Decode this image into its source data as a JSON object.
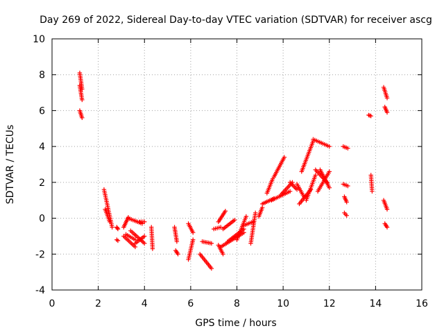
{
  "chart_data": {
    "type": "scatter",
    "title": "Day 269 of 2022, Sidereal Day-to-day VTEC variation (SDTVAR) for receiver ascg",
    "xlabel": "GPS time / hours",
    "ylabel": "SDTVAR / TECUs",
    "xlim": [
      0,
      16
    ],
    "ylim": [
      -4,
      10
    ],
    "xticks": [
      "0",
      "2",
      "4",
      "6",
      "8",
      "10",
      "12",
      "14",
      "16"
    ],
    "yticks": [
      "-4",
      "-2",
      "0",
      "2",
      "4",
      "6",
      "8",
      "10"
    ],
    "grid": true,
    "marker": "+",
    "color": "#ff0000",
    "series": [
      {
        "name": "SDTVAR",
        "segments": [
          {
            "x0": 1.2,
            "x1": 1.3,
            "y0": 8.1,
            "y1": 7.2
          },
          {
            "x0": 1.2,
            "x1": 1.3,
            "y0": 7.4,
            "y1": 6.6
          },
          {
            "x0": 1.2,
            "x1": 1.3,
            "y0": 6.0,
            "y1": 5.6
          },
          {
            "x0": 2.25,
            "x1": 2.6,
            "y0": 1.6,
            "y1": -0.5
          },
          {
            "x0": 2.3,
            "x1": 2.5,
            "y0": 0.5,
            "y1": -0.2
          },
          {
            "x0": 2.8,
            "x1": 2.85,
            "y0": -0.5,
            "y1": -0.6
          },
          {
            "x0": 2.8,
            "x1": 2.85,
            "y0": -1.2,
            "y1": -1.25
          },
          {
            "x0": 3.1,
            "x1": 3.3,
            "y0": -0.5,
            "y1": 0.05
          },
          {
            "x0": 3.1,
            "x1": 3.6,
            "y0": -1.0,
            "y1": -1.6
          },
          {
            "x0": 3.2,
            "x1": 3.6,
            "y0": -0.9,
            "y1": -1.2
          },
          {
            "x0": 3.3,
            "x1": 3.9,
            "y0": -0.0,
            "y1": -0.3
          },
          {
            "x0": 3.4,
            "x1": 4.0,
            "y0": -0.7,
            "y1": -1.4
          },
          {
            "x0": 3.6,
            "x1": 4.0,
            "y0": -1.4,
            "y1": -1.0
          },
          {
            "x0": 3.8,
            "x1": 4.0,
            "y0": -0.2,
            "y1": -0.2
          },
          {
            "x0": 4.3,
            "x1": 4.35,
            "y0": -0.5,
            "y1": -1.7
          },
          {
            "x0": 5.3,
            "x1": 5.4,
            "y0": -0.5,
            "y1": -1.3
          },
          {
            "x0": 5.35,
            "x1": 5.45,
            "y0": -1.8,
            "y1": -2.0
          },
          {
            "x0": 5.9,
            "x1": 6.1,
            "y0": -2.3,
            "y1": -1.2
          },
          {
            "x0": 5.9,
            "x1": 6.1,
            "y0": -0.3,
            "y1": -0.8
          },
          {
            "x0": 6.4,
            "x1": 6.9,
            "y0": -2.0,
            "y1": -2.8
          },
          {
            "x0": 6.5,
            "x1": 6.9,
            "y0": -1.3,
            "y1": -1.4
          },
          {
            "x0": 7.0,
            "x1": 7.3,
            "y0": -0.6,
            "y1": -0.5
          },
          {
            "x0": 7.2,
            "x1": 7.4,
            "y0": -1.5,
            "y1": -2.0
          },
          {
            "x0": 7.2,
            "x1": 7.5,
            "y0": -0.2,
            "y1": 0.4
          },
          {
            "x0": 7.4,
            "x1": 7.9,
            "y0": -0.6,
            "y1": -0.1
          },
          {
            "x0": 7.3,
            "x1": 8.3,
            "y0": -1.6,
            "y1": -0.8
          },
          {
            "x0": 7.6,
            "x1": 8.3,
            "y0": -1.3,
            "y1": -0.6
          },
          {
            "x0": 8.0,
            "x1": 8.4,
            "y0": -1.2,
            "y1": 0.1
          },
          {
            "x0": 8.3,
            "x1": 8.7,
            "y0": -0.4,
            "y1": -0.2
          },
          {
            "x0": 8.6,
            "x1": 8.8,
            "y0": -1.4,
            "y1": 0.3
          },
          {
            "x0": 8.95,
            "x1": 9.1,
            "y0": 0.1,
            "y1": 0.6
          },
          {
            "x0": 9.1,
            "x1": 9.6,
            "y0": 0.8,
            "y1": 1.1
          },
          {
            "x0": 9.3,
            "x1": 9.55,
            "y0": 1.4,
            "y1": 2.2
          },
          {
            "x0": 9.6,
            "x1": 10.05,
            "y0": 2.3,
            "y1": 3.4
          },
          {
            "x0": 9.5,
            "x1": 10.3,
            "y0": 1.0,
            "y1": 1.5
          },
          {
            "x0": 9.9,
            "x1": 10.4,
            "y0": 1.3,
            "y1": 2.0
          },
          {
            "x0": 10.3,
            "x1": 10.6,
            "y0": 2.0,
            "y1": 1.6
          },
          {
            "x0": 10.6,
            "x1": 10.9,
            "y0": 1.9,
            "y1": 1.2
          },
          {
            "x0": 10.8,
            "x1": 11.3,
            "y0": 2.6,
            "y1": 4.3
          },
          {
            "x0": 10.7,
            "x1": 11.2,
            "y0": 0.8,
            "y1": 1.6
          },
          {
            "x0": 11.0,
            "x1": 11.4,
            "y0": 1.0,
            "y1": 2.4
          },
          {
            "x0": 11.3,
            "x1": 12.0,
            "y0": 4.4,
            "y1": 4.0
          },
          {
            "x0": 11.4,
            "x1": 11.9,
            "y0": 2.7,
            "y1": 2.0
          },
          {
            "x0": 11.5,
            "x1": 12.0,
            "y0": 1.5,
            "y1": 2.6
          },
          {
            "x0": 11.6,
            "x1": 12.0,
            "y0": 2.7,
            "y1": 1.7
          },
          {
            "x0": 12.6,
            "x1": 12.8,
            "y0": 4.0,
            "y1": 3.9
          },
          {
            "x0": 12.6,
            "x1": 12.8,
            "y0": 1.9,
            "y1": 1.8
          },
          {
            "x0": 12.65,
            "x1": 12.75,
            "y0": 1.2,
            "y1": 0.9
          },
          {
            "x0": 12.65,
            "x1": 12.75,
            "y0": 0.3,
            "y1": 0.15
          },
          {
            "x0": 13.7,
            "x1": 13.8,
            "y0": 5.75,
            "y1": 5.7
          },
          {
            "x0": 13.8,
            "x1": 13.85,
            "y0": 2.4,
            "y1": 1.5
          },
          {
            "x0": 14.35,
            "x1": 14.5,
            "y0": 7.3,
            "y1": 6.7
          },
          {
            "x0": 14.4,
            "x1": 14.5,
            "y0": 6.2,
            "y1": 5.9
          },
          {
            "x0": 14.35,
            "x1": 14.5,
            "y0": 1.0,
            "y1": 0.5
          },
          {
            "x0": 14.4,
            "x1": 14.5,
            "y0": -0.3,
            "y1": -0.5
          }
        ]
      }
    ]
  }
}
